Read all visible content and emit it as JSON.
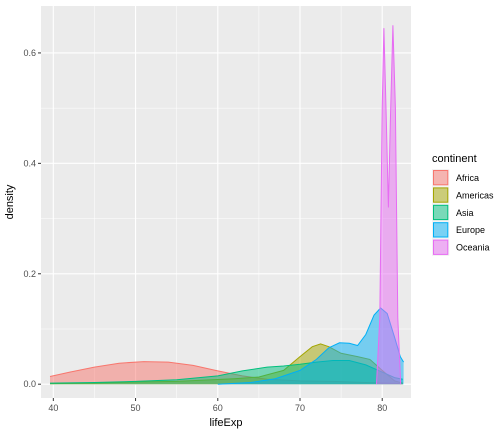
{
  "chart_data": {
    "type": "area",
    "title": "",
    "xlabel": "lifeExp",
    "ylabel": "density",
    "xlim": [
      38.5,
      83.5
    ],
    "ylim": [
      -0.025,
      0.685
    ],
    "x_ticks": [
      40,
      50,
      60,
      70,
      80
    ],
    "y_ticks": [
      0.0,
      0.2,
      0.4,
      0.6
    ],
    "y_tick_labels": [
      "0.0",
      "0.2",
      "0.4",
      "0.6"
    ],
    "grid": true,
    "legend": {
      "title": "continent",
      "placement": "right"
    },
    "series": [
      {
        "name": "Africa",
        "color": "#F8766D",
        "points": [
          [
            39.6,
            0.014
          ],
          [
            42,
            0.022
          ],
          [
            45,
            0.031
          ],
          [
            48,
            0.038
          ],
          [
            51,
            0.041
          ],
          [
            54,
            0.04
          ],
          [
            57,
            0.034
          ],
          [
            60,
            0.024
          ],
          [
            63,
            0.015
          ],
          [
            66,
            0.009
          ],
          [
            70,
            0.006
          ],
          [
            74,
            0.005
          ],
          [
            78,
            0.003
          ],
          [
            82.5,
            0.001
          ]
        ]
      },
      {
        "name": "Americas",
        "color": "#A3A500",
        "points": [
          [
            39.6,
            0.001
          ],
          [
            45,
            0.002
          ],
          [
            50,
            0.004
          ],
          [
            55,
            0.005
          ],
          [
            58,
            0.007
          ],
          [
            62,
            0.01
          ],
          [
            65,
            0.013
          ],
          [
            68,
            0.025
          ],
          [
            70,
            0.05
          ],
          [
            71.5,
            0.068
          ],
          [
            72.5,
            0.073
          ],
          [
            73.5,
            0.068
          ],
          [
            75,
            0.056
          ],
          [
            77,
            0.05
          ],
          [
            78.5,
            0.045
          ],
          [
            80,
            0.025
          ],
          [
            81.5,
            0.006
          ],
          [
            82.5,
            0.002
          ]
        ]
      },
      {
        "name": "Asia",
        "color": "#00BF7D",
        "points": [
          [
            39.6,
            0.002
          ],
          [
            45,
            0.003
          ],
          [
            50,
            0.005
          ],
          [
            55,
            0.008
          ],
          [
            60,
            0.015
          ],
          [
            63,
            0.024
          ],
          [
            66,
            0.031
          ],
          [
            68,
            0.033
          ],
          [
            70,
            0.036
          ],
          [
            72,
            0.04
          ],
          [
            74,
            0.043
          ],
          [
            76,
            0.043
          ],
          [
            78,
            0.035
          ],
          [
            80,
            0.022
          ],
          [
            81.5,
            0.012
          ],
          [
            82.5,
            0.009
          ]
        ]
      },
      {
        "name": "Europe",
        "color": "#00B0F6",
        "points": [
          [
            60,
            0.0
          ],
          [
            64,
            0.003
          ],
          [
            67,
            0.01
          ],
          [
            70,
            0.025
          ],
          [
            72,
            0.045
          ],
          [
            73.5,
            0.066
          ],
          [
            74.8,
            0.075
          ],
          [
            76,
            0.074
          ],
          [
            77,
            0.07
          ],
          [
            78,
            0.09
          ],
          [
            79,
            0.125
          ],
          [
            79.8,
            0.138
          ],
          [
            80.6,
            0.128
          ],
          [
            81.5,
            0.085
          ],
          [
            82.2,
            0.05
          ],
          [
            82.6,
            0.04
          ]
        ]
      },
      {
        "name": "Oceania",
        "color": "#E76BF3",
        "points": [
          [
            79.3,
            0.0
          ],
          [
            79.7,
            0.12
          ],
          [
            80.0,
            0.5
          ],
          [
            80.2,
            0.645
          ],
          [
            80.5,
            0.48
          ],
          [
            80.75,
            0.32
          ],
          [
            81.0,
            0.48
          ],
          [
            81.3,
            0.65
          ],
          [
            81.6,
            0.5
          ],
          [
            81.9,
            0.12
          ],
          [
            82.25,
            0.0
          ]
        ]
      }
    ]
  }
}
